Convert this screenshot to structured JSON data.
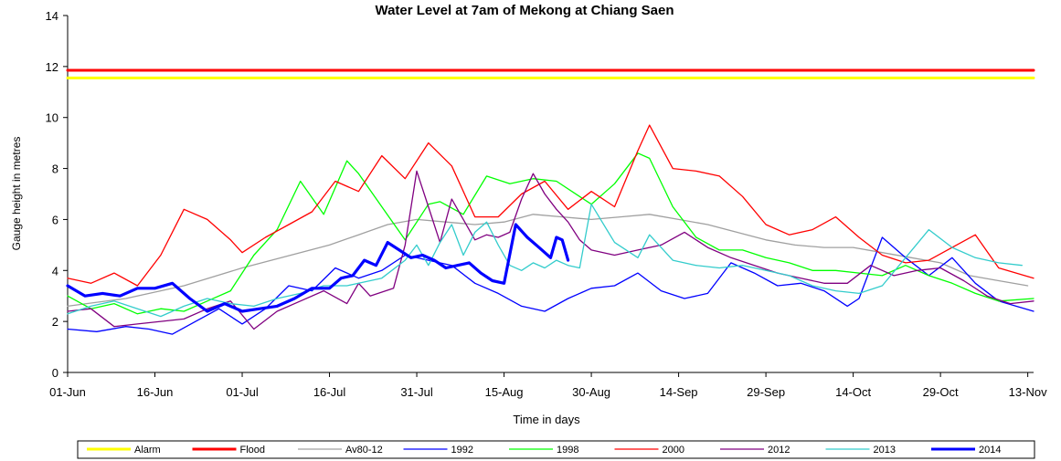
{
  "chart_data": {
    "type": "line",
    "title": "Water Level at 7am of Mekong at Chiang Saen",
    "xlabel": "Time in days",
    "ylabel": "Gauge height in metres",
    "ylim": [
      0,
      14
    ],
    "yticks": [
      0,
      2,
      4,
      6,
      8,
      10,
      12,
      14
    ],
    "xlim": [
      0,
      166
    ],
    "xticks": [
      {
        "day": 0,
        "label": "01-Jun"
      },
      {
        "day": 15,
        "label": "16-Jun"
      },
      {
        "day": 30,
        "label": "01-Jul"
      },
      {
        "day": 45,
        "label": "16-Jul"
      },
      {
        "day": 60,
        "label": "31-Jul"
      },
      {
        "day": 75,
        "label": "15-Aug"
      },
      {
        "day": 90,
        "label": "30-Aug"
      },
      {
        "day": 105,
        "label": "14-Sep"
      },
      {
        "day": 120,
        "label": "29-Sep"
      },
      {
        "day": 135,
        "label": "14-Oct"
      },
      {
        "day": 150,
        "label": "29-Oct"
      },
      {
        "day": 165,
        "label": "13-Nov"
      }
    ],
    "grid": false,
    "legend_position": "bottom",
    "series": [
      {
        "name": "Alarm",
        "color": "#ffff00",
        "width": 3,
        "x": [
          0,
          166
        ],
        "y": [
          11.55,
          11.55
        ]
      },
      {
        "name": "Flood",
        "color": "#ff0000",
        "width": 3,
        "x": [
          0,
          166
        ],
        "y": [
          11.85,
          11.85
        ]
      },
      {
        "name": "Av80-12",
        "color": "#a0a0a0",
        "width": 1.3,
        "x": [
          0,
          10,
          20,
          30,
          35,
          40,
          45,
          50,
          55,
          60,
          65,
          70,
          75,
          80,
          85,
          90,
          95,
          100,
          105,
          110,
          115,
          120,
          125,
          130,
          135,
          140,
          145,
          150,
          155,
          160,
          165
        ],
        "y": [
          2.6,
          2.9,
          3.4,
          4.1,
          4.4,
          4.7,
          5.0,
          5.4,
          5.8,
          6.0,
          5.9,
          5.8,
          5.9,
          6.2,
          6.1,
          6.0,
          6.1,
          6.2,
          6.0,
          5.8,
          5.5,
          5.2,
          5.0,
          4.9,
          4.9,
          4.7,
          4.5,
          4.3,
          3.8,
          3.6,
          3.4
        ]
      },
      {
        "name": "1992",
        "color": "#0000ff",
        "width": 1.3,
        "x": [
          0,
          5,
          10,
          14,
          18,
          22,
          26,
          30,
          34,
          38,
          42,
          46,
          50,
          54,
          58,
          62,
          66,
          70,
          74,
          78,
          82,
          86,
          90,
          94,
          98,
          102,
          106,
          110,
          114,
          118,
          122,
          126,
          130,
          134,
          136,
          140,
          144,
          148,
          152,
          156,
          160,
          166
        ],
        "y": [
          1.7,
          1.6,
          1.8,
          1.7,
          1.5,
          2.0,
          2.5,
          1.9,
          2.5,
          3.4,
          3.2,
          4.1,
          3.7,
          4.0,
          4.6,
          4.4,
          4.2,
          3.5,
          3.1,
          2.6,
          2.4,
          2.9,
          3.3,
          3.4,
          3.9,
          3.2,
          2.9,
          3.1,
          4.3,
          3.9,
          3.4,
          3.5,
          3.2,
          2.6,
          2.9,
          5.3,
          4.5,
          3.8,
          4.5,
          3.5,
          2.8,
          2.4
        ]
      },
      {
        "name": "1998",
        "color": "#00ff00",
        "width": 1.3,
        "x": [
          0,
          4,
          8,
          12,
          16,
          20,
          24,
          28,
          32,
          36,
          40,
          44,
          48,
          50,
          54,
          58,
          62,
          64,
          68,
          72,
          76,
          80,
          84,
          88,
          90,
          94,
          98,
          100,
          104,
          108,
          112,
          116,
          120,
          124,
          128,
          132,
          136,
          140,
          144,
          148,
          152,
          156,
          160,
          166
        ],
        "y": [
          3.0,
          2.5,
          2.7,
          2.3,
          2.5,
          2.4,
          2.8,
          3.2,
          4.6,
          5.6,
          7.5,
          6.2,
          8.3,
          7.8,
          6.5,
          5.2,
          6.6,
          6.7,
          6.2,
          7.7,
          7.4,
          7.6,
          7.5,
          6.9,
          6.6,
          7.4,
          8.6,
          8.4,
          6.5,
          5.3,
          4.8,
          4.8,
          4.5,
          4.3,
          4.0,
          4.0,
          3.9,
          3.8,
          4.2,
          3.8,
          3.5,
          3.1,
          2.8,
          2.9
        ]
      },
      {
        "name": "2000",
        "color": "#ff0000",
        "width": 1.3,
        "x": [
          0,
          4,
          8,
          12,
          16,
          20,
          24,
          28,
          30,
          34,
          38,
          42,
          46,
          50,
          54,
          58,
          62,
          66,
          70,
          74,
          78,
          82,
          86,
          90,
          94,
          98,
          100,
          104,
          108,
          112,
          116,
          120,
          124,
          128,
          132,
          136,
          140,
          144,
          148,
          152,
          156,
          160,
          166
        ],
        "y": [
          3.7,
          3.5,
          3.9,
          3.4,
          4.6,
          6.4,
          6.0,
          5.2,
          4.7,
          5.3,
          5.8,
          6.3,
          7.5,
          7.1,
          8.5,
          7.6,
          9.0,
          8.1,
          6.1,
          6.1,
          7.0,
          7.5,
          6.4,
          7.1,
          6.5,
          8.7,
          9.7,
          8.0,
          7.9,
          7.7,
          6.9,
          5.8,
          5.4,
          5.6,
          6.1,
          5.3,
          4.6,
          4.3,
          4.4,
          4.9,
          5.4,
          4.1,
          3.7
        ]
      },
      {
        "name": "2012",
        "color": "#800080",
        "width": 1.3,
        "x": [
          0,
          4,
          8,
          12,
          16,
          20,
          24,
          28,
          32,
          36,
          40,
          44,
          48,
          50,
          52,
          56,
          58,
          60,
          62,
          64,
          66,
          68,
          70,
          72,
          74,
          76,
          78,
          80,
          82,
          84,
          86,
          88,
          90,
          94,
          98,
          102,
          106,
          110,
          114,
          118,
          122,
          126,
          130,
          134,
          138,
          142,
          146,
          150,
          154,
          158,
          162,
          166
        ],
        "y": [
          2.4,
          2.5,
          1.8,
          1.9,
          2.0,
          2.1,
          2.5,
          2.8,
          1.7,
          2.4,
          2.8,
          3.2,
          2.7,
          3.5,
          3.0,
          3.3,
          5.0,
          7.9,
          6.5,
          5.1,
          6.8,
          6.0,
          5.2,
          5.4,
          5.3,
          5.5,
          6.8,
          7.8,
          7.0,
          6.4,
          5.9,
          5.2,
          4.8,
          4.6,
          4.8,
          5.0,
          5.5,
          4.9,
          4.5,
          4.2,
          3.9,
          3.7,
          3.5,
          3.5,
          4.2,
          3.8,
          4.0,
          4.1,
          3.6,
          3.0,
          2.7,
          2.8
        ]
      },
      {
        "name": "2013",
        "color": "#33cccc",
        "width": 1.3,
        "x": [
          0,
          4,
          8,
          12,
          16,
          20,
          24,
          28,
          32,
          36,
          40,
          44,
          48,
          50,
          54,
          58,
          60,
          62,
          64,
          66,
          68,
          70,
          72,
          74,
          76,
          78,
          80,
          82,
          84,
          86,
          88,
          90,
          94,
          98,
          100,
          104,
          108,
          112,
          116,
          120,
          124,
          128,
          132,
          136,
          140,
          144,
          148,
          152,
          156,
          160,
          164
        ],
        "y": [
          2.3,
          2.6,
          2.8,
          2.5,
          2.2,
          2.6,
          2.9,
          2.7,
          2.6,
          2.9,
          3.1,
          3.4,
          3.4,
          3.5,
          3.7,
          4.4,
          5.0,
          4.2,
          5.1,
          5.8,
          4.6,
          5.5,
          5.9,
          5.0,
          4.2,
          4.0,
          4.3,
          4.1,
          4.4,
          4.2,
          4.1,
          6.6,
          5.1,
          4.5,
          5.4,
          4.4,
          4.2,
          4.1,
          4.2,
          4.0,
          3.8,
          3.4,
          3.2,
          3.1,
          3.4,
          4.5,
          5.6,
          4.9,
          4.5,
          4.3,
          4.2
        ]
      },
      {
        "name": "2014",
        "color": "#0000ff",
        "width": 3.2,
        "x": [
          0,
          3,
          6,
          9,
          12,
          15,
          18,
          21,
          24,
          27,
          30,
          33,
          36,
          39,
          42,
          45,
          47,
          49,
          51,
          53,
          55,
          57,
          59,
          61,
          63,
          65,
          67,
          69,
          71,
          73,
          75,
          77,
          79,
          81,
          83,
          84,
          85,
          86
        ],
        "y": [
          3.4,
          3.0,
          3.1,
          3.0,
          3.3,
          3.3,
          3.5,
          2.9,
          2.4,
          2.7,
          2.4,
          2.5,
          2.6,
          2.9,
          3.3,
          3.3,
          3.7,
          3.8,
          4.4,
          4.2,
          5.1,
          4.8,
          4.5,
          4.6,
          4.4,
          4.1,
          4.2,
          4.3,
          3.9,
          3.6,
          3.5,
          5.8,
          5.3,
          4.9,
          4.5,
          5.3,
          5.2,
          4.4
        ]
      }
    ]
  }
}
